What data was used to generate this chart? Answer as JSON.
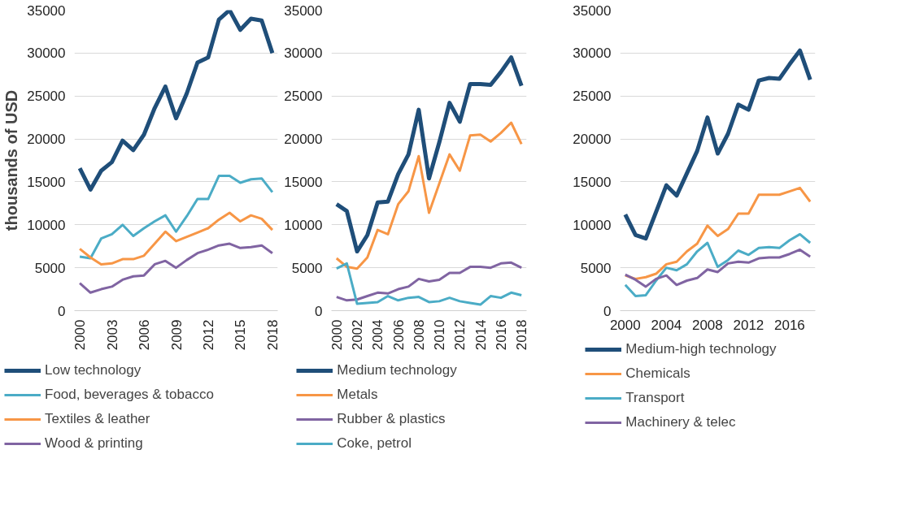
{
  "chart_data": [
    {
      "type": "line",
      "ylabel": "thousands of USD",
      "x": [
        2000,
        2001,
        2002,
        2003,
        2004,
        2005,
        2006,
        2007,
        2008,
        2009,
        2010,
        2011,
        2012,
        2013,
        2014,
        2015,
        2016,
        2017,
        2018
      ],
      "xlim": [
        1999.5,
        2018.5
      ],
      "xticks": [
        2000,
        2003,
        2006,
        2009,
        2012,
        2015,
        2018
      ],
      "ylim": [
        0,
        35000
      ],
      "yticks": [
        0,
        5000,
        10000,
        15000,
        20000,
        25000,
        30000,
        35000
      ],
      "grid": "y",
      "legend": "bottom",
      "series": [
        {
          "name": "Low technology",
          "color": "#1f4e79",
          "values": [
            16600,
            14100,
            16300,
            17300,
            19800,
            18700,
            20500,
            23600,
            26100,
            22400,
            25300,
            28900,
            29500,
            33900,
            35000,
            32700,
            34000,
            33800,
            30000
          ]
        },
        {
          "name": "Food, beverages & tobacco",
          "color": "#4bacc6",
          "values": [
            6300,
            6100,
            8400,
            8900,
            10000,
            8700,
            9600,
            10400,
            11100,
            9200,
            11000,
            13000,
            13000,
            15700,
            15700,
            14900,
            15300,
            15400,
            13800
          ]
        },
        {
          "name": "Textiles & leather",
          "color": "#f79646",
          "values": [
            7200,
            6200,
            5400,
            5500,
            6000,
            6000,
            6400,
            7800,
            9200,
            8100,
            8600,
            9100,
            9600,
            10600,
            11400,
            10400,
            11100,
            10700,
            9400
          ]
        },
        {
          "name": "Wood & printing",
          "color": "#8064a2",
          "values": [
            3200,
            2100,
            2500,
            2800,
            3600,
            4000,
            4100,
            5400,
            5800,
            5000,
            5900,
            6700,
            7100,
            7600,
            7800,
            7300,
            7400,
            7600,
            6700
          ]
        }
      ]
    },
    {
      "type": "line",
      "x": [
        2000,
        2001,
        2002,
        2003,
        2004,
        2005,
        2006,
        2007,
        2008,
        2009,
        2010,
        2011,
        2012,
        2013,
        2014,
        2015,
        2016,
        2017,
        2018
      ],
      "xlim": [
        1999.5,
        2018.5
      ],
      "xticks": [
        2000,
        2002,
        2004,
        2006,
        2008,
        2010,
        2012,
        2014,
        2016,
        2018
      ],
      "ylim": [
        0,
        35000
      ],
      "yticks": [
        0,
        5000,
        10000,
        15000,
        20000,
        25000,
        30000,
        35000
      ],
      "grid": "y",
      "legend": "bottom",
      "series": [
        {
          "name": "Medium technology",
          "color": "#1f4e79",
          "values": [
            12400,
            11600,
            6900,
            8800,
            12600,
            12700,
            15900,
            18200,
            23400,
            15400,
            19600,
            24200,
            22000,
            26400,
            26400,
            26300,
            27800,
            29500,
            26200
          ]
        },
        {
          "name": "Metals",
          "color": "#f79646",
          "values": [
            6100,
            5100,
            4900,
            6200,
            9400,
            8900,
            12400,
            13900,
            18000,
            11400,
            14800,
            18200,
            16300,
            20400,
            20500,
            19700,
            20700,
            21900,
            19400
          ]
        },
        {
          "name": "Rubber & plastics",
          "color": "#8064a2",
          "values": [
            1600,
            1200,
            1300,
            1700,
            2100,
            2000,
            2500,
            2800,
            3700,
            3400,
            3600,
            4400,
            4400,
            5100,
            5100,
            5000,
            5500,
            5600,
            5000
          ]
        },
        {
          "name": "Coke, petrol",
          "color": "#4bacc6",
          "values": [
            4900,
            5500,
            800,
            900,
            1000,
            1700,
            1200,
            1500,
            1600,
            1000,
            1100,
            1500,
            1100,
            900,
            700,
            1700,
            1500,
            2100,
            1800
          ]
        }
      ]
    },
    {
      "type": "line",
      "x": [
        2000,
        2001,
        2002,
        2003,
        2004,
        2005,
        2006,
        2007,
        2008,
        2009,
        2010,
        2011,
        2012,
        2013,
        2014,
        2015,
        2016,
        2017,
        2018
      ],
      "xlim": [
        1999.5,
        2018.5
      ],
      "xticks": [
        2000,
        2004,
        2008,
        2012,
        2016
      ],
      "ylim": [
        0,
        35000
      ],
      "yticks": [
        0,
        5000,
        10000,
        15000,
        20000,
        25000,
        30000,
        35000
      ],
      "grid": "y",
      "legend": "bottom",
      "series": [
        {
          "name": "Medium-high technology",
          "color": "#1f4e79",
          "values": [
            11200,
            8800,
            8400,
            11500,
            14600,
            13400,
            16000,
            18600,
            22500,
            18300,
            20600,
            24000,
            23400,
            26800,
            27100,
            27000,
            28700,
            30300,
            26900
          ]
        },
        {
          "name": "Chemicals",
          "color": "#f79646",
          "values": [
            4100,
            3700,
            3900,
            4300,
            5400,
            5700,
            6900,
            7800,
            9900,
            8700,
            9500,
            11300,
            11300,
            13500,
            13500,
            13500,
            13900,
            14300,
            12700
          ]
        },
        {
          "name": "Transport",
          "color": "#4bacc6",
          "values": [
            3000,
            1700,
            1800,
            3500,
            5000,
            4700,
            5400,
            6900,
            7900,
            5100,
            5900,
            7000,
            6500,
            7300,
            7400,
            7300,
            8200,
            8900,
            7900
          ]
        },
        {
          "name": "Machinery & telec",
          "color": "#8064a2",
          "values": [
            4200,
            3600,
            2800,
            3700,
            4100,
            3000,
            3500,
            3800,
            4800,
            4500,
            5500,
            5700,
            5600,
            6100,
            6200,
            6200,
            6600,
            7100,
            6300
          ]
        }
      ]
    }
  ]
}
